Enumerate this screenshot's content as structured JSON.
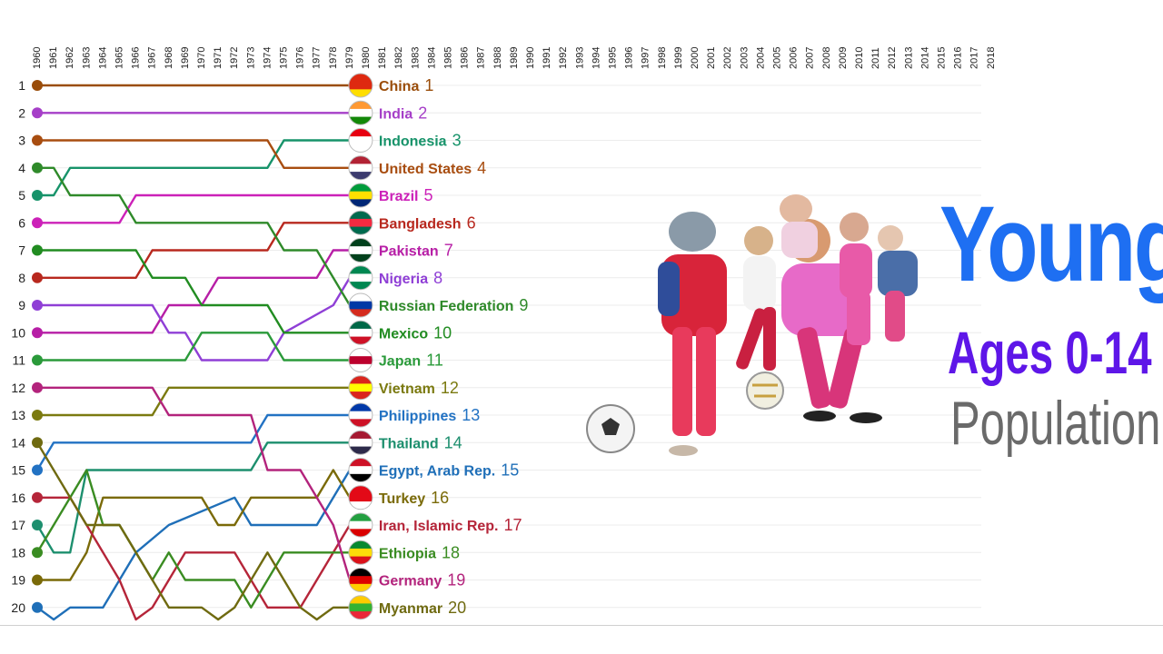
{
  "chart_data": {
    "type": "line",
    "subtype": "bump-chart",
    "title_lines": [
      "Young",
      "Ages 0-14",
      "Population"
    ],
    "title_colors": [
      "#1e6ff2",
      "#5e16e8",
      "#6a6a6a"
    ],
    "years": [
      "1960",
      "1961",
      "1962",
      "1963",
      "1964",
      "1965",
      "1966",
      "1967",
      "1968",
      "1969",
      "1970",
      "1971",
      "1972",
      "1973",
      "1974",
      "1975",
      "1976",
      "1977",
      "1978",
      "1979",
      "1980",
      "1981",
      "1982",
      "1983",
      "1984",
      "1985",
      "1986",
      "1987",
      "1988",
      "1989",
      "1990",
      "1991",
      "1992",
      "1993",
      "1994",
      "1995",
      "1996",
      "1997",
      "1998",
      "1999",
      "2000",
      "2001",
      "2002",
      "2003",
      "2004",
      "2005",
      "2006",
      "2007",
      "2008",
      "2009",
      "2010",
      "2011",
      "2012",
      "2013",
      "2014",
      "2015",
      "2016",
      "2017",
      "2018"
    ],
    "ranks": [
      1,
      2,
      3,
      4,
      5,
      6,
      7,
      8,
      9,
      10,
      11,
      12,
      13,
      14,
      15,
      16,
      17,
      18,
      19,
      20
    ],
    "y_axis": {
      "inverted": true,
      "min": 1,
      "max": 20
    },
    "current_year": "1979",
    "series": [
      {
        "name": "China",
        "color": "#9a4d0a",
        "rank_now": "1",
        "flag": [
          "#de2910",
          "#de2910",
          "#ffde00"
        ],
        "points": [
          [
            1960,
            1
          ],
          [
            1979,
            1
          ]
        ]
      },
      {
        "name": "India",
        "color": "#a63fc8",
        "rank_now": "2",
        "flag": [
          "#ff9933",
          "#ffffff",
          "#138808"
        ],
        "points": [
          [
            1960,
            2
          ],
          [
            1979,
            2
          ]
        ]
      },
      {
        "name": "Indonesia",
        "color": "#17936a",
        "rank_now": "3",
        "flag": [
          "#e70011",
          "#ffffff",
          "#ffffff"
        ],
        "points": [
          [
            1960,
            5
          ],
          [
            1961,
            5
          ],
          [
            1962,
            4
          ],
          [
            1974,
            4
          ],
          [
            1975,
            3
          ],
          [
            1979,
            3
          ]
        ]
      },
      {
        "name": "United States",
        "color": "#a84d10",
        "rank_now": "4",
        "flag": [
          "#b22234",
          "#ffffff",
          "#3c3b6e"
        ],
        "points": [
          [
            1960,
            3
          ],
          [
            1974,
            3
          ],
          [
            1975,
            4
          ],
          [
            1979,
            4
          ]
        ]
      },
      {
        "name": "Brazil",
        "color": "#cc21b8",
        "rank_now": "5",
        "flag": [
          "#009c3b",
          "#ffdf00",
          "#002776"
        ],
        "points": [
          [
            1960,
            6
          ],
          [
            1965,
            6
          ],
          [
            1966,
            5
          ],
          [
            1979,
            5
          ]
        ]
      },
      {
        "name": "Bangladesh",
        "color": "#b8281e",
        "rank_now": "6",
        "flag": [
          "#006a4e",
          "#f42a41",
          "#006a4e"
        ],
        "points": [
          [
            1960,
            8
          ],
          [
            1966,
            8
          ],
          [
            1967,
            7
          ],
          [
            1974,
            7
          ],
          [
            1975,
            6
          ],
          [
            1979,
            6
          ]
        ]
      },
      {
        "name": "Pakistan",
        "color": "#b71ea6",
        "rank_now": "7",
        "flag": [
          "#01411c",
          "#ffffff",
          "#01411c"
        ],
        "points": [
          [
            1960,
            10
          ],
          [
            1967,
            10
          ],
          [
            1968,
            9
          ],
          [
            1970,
            9
          ],
          [
            1971,
            8
          ],
          [
            1977,
            8
          ],
          [
            1978,
            7
          ],
          [
            1979,
            7
          ]
        ]
      },
      {
        "name": "Nigeria",
        "color": "#8f3fd6",
        "rank_now": "8",
        "flag": [
          "#008751",
          "#ffffff",
          "#008751"
        ],
        "points": [
          [
            1960,
            9
          ],
          [
            1967,
            9
          ],
          [
            1968,
            10
          ],
          [
            1969,
            10
          ],
          [
            1970,
            11
          ],
          [
            1974,
            11
          ],
          [
            1975,
            10
          ],
          [
            1978,
            9
          ],
          [
            1979,
            8
          ]
        ]
      },
      {
        "name": "Russian Federation",
        "color": "#2f8a2a",
        "rank_now": "9",
        "flag": [
          "#ffffff",
          "#0039a6",
          "#d52b1e"
        ],
        "points": [
          [
            1960,
            4
          ],
          [
            1961,
            4
          ],
          [
            1962,
            5
          ],
          [
            1965,
            5
          ],
          [
            1966,
            6
          ],
          [
            1974,
            6
          ],
          [
            1975,
            7
          ],
          [
            1977,
            7
          ],
          [
            1978,
            8
          ],
          [
            1979,
            9
          ]
        ]
      },
      {
        "name": "Mexico",
        "color": "#218c21",
        "rank_now": "10",
        "flag": [
          "#006847",
          "#ffffff",
          "#ce1126"
        ],
        "points": [
          [
            1960,
            7
          ],
          [
            1966,
            7
          ],
          [
            1967,
            8
          ],
          [
            1969,
            8
          ],
          [
            1970,
            9
          ],
          [
            1974,
            9
          ],
          [
            1975,
            10
          ],
          [
            1979,
            10
          ]
        ]
      },
      {
        "name": "Japan",
        "color": "#2a9a3a",
        "rank_now": "11",
        "flag": [
          "#ffffff",
          "#bc002d",
          "#ffffff"
        ],
        "points": [
          [
            1960,
            11
          ],
          [
            1969,
            11
          ],
          [
            1970,
            10
          ],
          [
            1974,
            10
          ],
          [
            1975,
            11
          ],
          [
            1979,
            11
          ]
        ]
      },
      {
        "name": "Vietnam",
        "color": "#7b7a10",
        "rank_now": "12",
        "flag": [
          "#da251d",
          "#ffff00",
          "#da251d"
        ],
        "points": [
          [
            1960,
            13
          ],
          [
            1967,
            13
          ],
          [
            1968,
            12
          ],
          [
            1979,
            12
          ]
        ]
      },
      {
        "name": "Philippines",
        "color": "#2272c3",
        "rank_now": "13",
        "flag": [
          "#0038a8",
          "#ffffff",
          "#ce1126"
        ],
        "points": [
          [
            1960,
            15
          ],
          [
            1961,
            14
          ],
          [
            1973,
            14
          ],
          [
            1974,
            13
          ],
          [
            1979,
            13
          ]
        ]
      },
      {
        "name": "Thailand",
        "color": "#1d8f6e",
        "rank_now": "14",
        "flag": [
          "#a51931",
          "#ffffff",
          "#2d2a4a"
        ],
        "points": [
          [
            1960,
            17
          ],
          [
            1961,
            18
          ],
          [
            1962,
            18
          ],
          [
            1963,
            15
          ],
          [
            1973,
            15
          ],
          [
            1974,
            14
          ],
          [
            1979,
            14
          ]
        ]
      },
      {
        "name": "Egypt, Arab Rep.",
        "color": "#1f6fb8",
        "rank_now": "15",
        "flag": [
          "#ce1126",
          "#ffffff",
          "#000000"
        ],
        "points": [
          [
            1960,
            20
          ],
          [
            1961,
            21
          ],
          [
            1962,
            20
          ],
          [
            1964,
            20
          ],
          [
            1965,
            19
          ],
          [
            1966,
            18
          ],
          [
            1968,
            17
          ],
          [
            1972,
            16
          ],
          [
            1973,
            17
          ],
          [
            1977,
            17
          ],
          [
            1978,
            16
          ],
          [
            1979,
            15
          ]
        ]
      },
      {
        "name": "Turkey",
        "color": "#7a6a08",
        "rank_now": "16",
        "flag": [
          "#e30a17",
          "#e30a17",
          "#ffffff"
        ],
        "points": [
          [
            1960,
            19
          ],
          [
            1961,
            19
          ],
          [
            1962,
            19
          ],
          [
            1963,
            18
          ],
          [
            1964,
            16
          ],
          [
            1970,
            16
          ],
          [
            1971,
            17
          ],
          [
            1972,
            17
          ],
          [
            1973,
            16
          ],
          [
            1977,
            16
          ],
          [
            1978,
            15
          ],
          [
            1979,
            16
          ]
        ]
      },
      {
        "name": "Iran, Islamic Rep.",
        "color": "#b52539",
        "rank_now": "17",
        "flag": [
          "#239f40",
          "#ffffff",
          "#da0000"
        ],
        "points": [
          [
            1960,
            16
          ],
          [
            1962,
            16
          ],
          [
            1963,
            17
          ],
          [
            1964,
            18
          ],
          [
            1965,
            19
          ],
          [
            1966,
            21
          ],
          [
            1967,
            20
          ],
          [
            1968,
            19
          ],
          [
            1969,
            18
          ],
          [
            1972,
            18
          ],
          [
            1973,
            19
          ],
          [
            1974,
            20
          ],
          [
            1976,
            20
          ],
          [
            1977,
            19
          ],
          [
            1978,
            18
          ],
          [
            1979,
            17
          ]
        ]
      },
      {
        "name": "Ethiopia",
        "color": "#3a8c22",
        "rank_now": "18",
        "flag": [
          "#078930",
          "#fcdd09",
          "#da121a"
        ],
        "points": [
          [
            1960,
            18
          ],
          [
            1961,
            17
          ],
          [
            1962,
            16
          ],
          [
            1963,
            15
          ],
          [
            1964,
            17
          ],
          [
            1965,
            17
          ],
          [
            1966,
            18
          ],
          [
            1967,
            19
          ],
          [
            1968,
            18
          ],
          [
            1969,
            19
          ],
          [
            1972,
            19
          ],
          [
            1973,
            20
          ],
          [
            1974,
            19
          ],
          [
            1975,
            18
          ],
          [
            1978,
            18
          ],
          [
            1979,
            18
          ]
        ]
      },
      {
        "name": "Germany",
        "color": "#b3237c",
        "rank_now": "19",
        "flag": [
          "#000000",
          "#dd0000",
          "#ffce00"
        ],
        "points": [
          [
            1960,
            12
          ],
          [
            1967,
            12
          ],
          [
            1968,
            13
          ],
          [
            1973,
            13
          ],
          [
            1974,
            15
          ],
          [
            1976,
            15
          ],
          [
            1977,
            16
          ],
          [
            1978,
            17
          ],
          [
            1979,
            19
          ]
        ]
      },
      {
        "name": "Myanmar",
        "color": "#6f6a10",
        "rank_now": "20",
        "flag": [
          "#fecb00",
          "#34b233",
          "#ea2839"
        ],
        "points": [
          [
            1960,
            14
          ],
          [
            1961,
            15
          ],
          [
            1962,
            16
          ],
          [
            1963,
            17
          ],
          [
            1964,
            17
          ],
          [
            1965,
            17
          ],
          [
            1966,
            18
          ],
          [
            1967,
            19
          ],
          [
            1968,
            20
          ],
          [
            1970,
            20
          ],
          [
            1971,
            21
          ],
          [
            1972,
            20
          ],
          [
            1973,
            19
          ],
          [
            1974,
            18
          ],
          [
            1975,
            19
          ],
          [
            1976,
            20
          ],
          [
            1977,
            21
          ],
          [
            1978,
            20
          ],
          [
            1979,
            20
          ]
        ]
      }
    ]
  }
}
